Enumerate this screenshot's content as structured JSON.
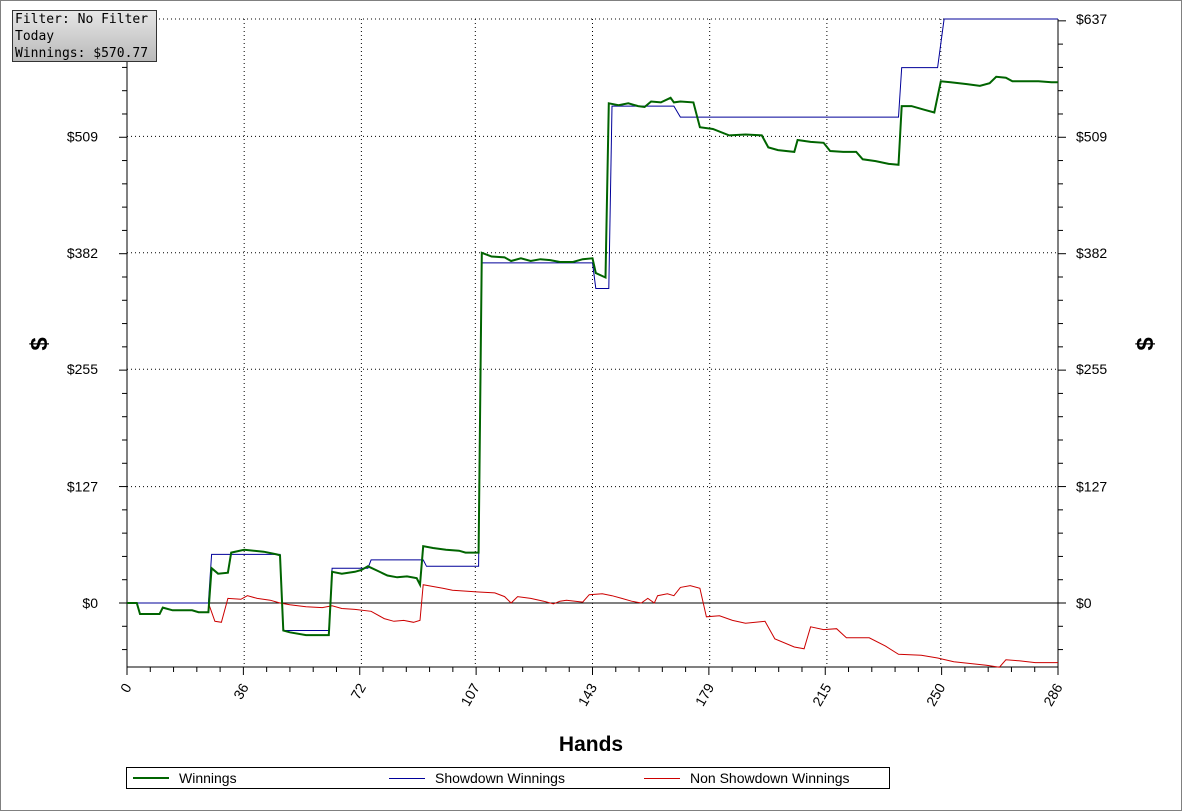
{
  "info_box": {
    "filter": "Filter: No Filter",
    "period": "Today",
    "winnings": "Winnings: $570.77"
  },
  "chart_data": {
    "type": "line",
    "title": "",
    "xlabel": "Hands",
    "ylabel_left": "$",
    "ylabel_right": "$",
    "xlim": [
      0,
      286
    ],
    "ylim": [
      -70,
      637
    ],
    "x_ticks": [
      "0",
      "36",
      "72",
      "107",
      "143",
      "179",
      "215",
      "250",
      "286"
    ],
    "x_tick_values": [
      0,
      36,
      72,
      107,
      143,
      179,
      215,
      250,
      286
    ],
    "y_ticks": [
      "$0",
      "$127",
      "$255",
      "$382",
      "$509",
      "$637"
    ],
    "y_tick_values": [
      0,
      127,
      255,
      382,
      509,
      637
    ],
    "grid": "dotted",
    "legend_position": "bottom",
    "series": [
      {
        "name": "Winnings",
        "color": "#006400",
        "points": [
          [
            0,
            0
          ],
          [
            3,
            0
          ],
          [
            4,
            -12
          ],
          [
            10,
            -12
          ],
          [
            11,
            -5
          ],
          [
            14,
            -8
          ],
          [
            20,
            -8
          ],
          [
            22,
            -10
          ],
          [
            25,
            -10
          ],
          [
            26,
            38
          ],
          [
            28,
            32
          ],
          [
            31,
            33
          ],
          [
            32,
            55
          ],
          [
            36,
            58
          ],
          [
            42,
            56
          ],
          [
            46,
            53
          ],
          [
            47,
            52
          ],
          [
            48,
            -30
          ],
          [
            50,
            -32
          ],
          [
            55,
            -35
          ],
          [
            60,
            -35
          ],
          [
            62,
            -35
          ],
          [
            63,
            34
          ],
          [
            66,
            32
          ],
          [
            70,
            34
          ],
          [
            72,
            36
          ],
          [
            74,
            40
          ],
          [
            77,
            35
          ],
          [
            80,
            30
          ],
          [
            83,
            28
          ],
          [
            86,
            29
          ],
          [
            89,
            27
          ],
          [
            90,
            20
          ],
          [
            91,
            62
          ],
          [
            94,
            60
          ],
          [
            98,
            58
          ],
          [
            102,
            57
          ],
          [
            104,
            55
          ],
          [
            108,
            55
          ],
          [
            109,
            382
          ],
          [
            112,
            378
          ],
          [
            116,
            377
          ],
          [
            118,
            373
          ],
          [
            121,
            376
          ],
          [
            124,
            373
          ],
          [
            127,
            375
          ],
          [
            130,
            374
          ],
          [
            133,
            372
          ],
          [
            137,
            372
          ],
          [
            140,
            375
          ],
          [
            143,
            376
          ],
          [
            144,
            360
          ],
          [
            147,
            355
          ],
          [
            148,
            545
          ],
          [
            151,
            543
          ],
          [
            154,
            545
          ],
          [
            157,
            542
          ],
          [
            159,
            541
          ],
          [
            161,
            547
          ],
          [
            164,
            546
          ],
          [
            167,
            551
          ],
          [
            168,
            546
          ],
          [
            170,
            547
          ],
          [
            174,
            546
          ],
          [
            176,
            519
          ],
          [
            180,
            517
          ],
          [
            185,
            510
          ],
          [
            190,
            511
          ],
          [
            195,
            510
          ],
          [
            197,
            497
          ],
          [
            200,
            494
          ],
          [
            205,
            492
          ],
          [
            206,
            505
          ],
          [
            210,
            503
          ],
          [
            214,
            502
          ],
          [
            216,
            493
          ],
          [
            220,
            492
          ],
          [
            224,
            492
          ],
          [
            226,
            484
          ],
          [
            230,
            482
          ],
          [
            234,
            479
          ],
          [
            237,
            478
          ],
          [
            238,
            542
          ],
          [
            241,
            542
          ],
          [
            245,
            538
          ],
          [
            248,
            535
          ],
          [
            250,
            569
          ],
          [
            253,
            568
          ],
          [
            258,
            566
          ],
          [
            262,
            564
          ],
          [
            265,
            567
          ],
          [
            267,
            574
          ],
          [
            270,
            573
          ],
          [
            272,
            569
          ],
          [
            276,
            569
          ],
          [
            280,
            569
          ],
          [
            284,
            568
          ],
          [
            286,
            568
          ]
        ]
      },
      {
        "name": "Showdown Winnings",
        "color": "#000099",
        "points": [
          [
            0,
            0
          ],
          [
            25,
            0
          ],
          [
            26,
            53
          ],
          [
            46,
            53
          ],
          [
            47,
            53
          ],
          [
            48,
            -30
          ],
          [
            62,
            -30
          ],
          [
            63,
            38
          ],
          [
            74,
            38
          ],
          [
            75,
            47
          ],
          [
            91,
            47
          ],
          [
            92,
            40
          ],
          [
            108,
            40
          ],
          [
            109,
            371
          ],
          [
            143,
            371
          ],
          [
            144,
            343
          ],
          [
            148,
            343
          ],
          [
            149,
            542
          ],
          [
            168,
            542
          ],
          [
            170,
            530
          ],
          [
            237,
            530
          ],
          [
            238,
            584
          ],
          [
            249,
            584
          ],
          [
            251,
            637
          ],
          [
            286,
            637
          ]
        ]
      },
      {
        "name": "Non Showdown Winnings",
        "color": "#cc0000",
        "points": [
          [
            0,
            0
          ],
          [
            25,
            0
          ],
          [
            27,
            -20
          ],
          [
            29,
            -21
          ],
          [
            31,
            5
          ],
          [
            35,
            4
          ],
          [
            37,
            8
          ],
          [
            40,
            5
          ],
          [
            44,
            3
          ],
          [
            47,
            0
          ],
          [
            50,
            -2
          ],
          [
            55,
            -4
          ],
          [
            60,
            -5
          ],
          [
            63,
            -3
          ],
          [
            66,
            -6
          ],
          [
            70,
            -7
          ],
          [
            75,
            -9
          ],
          [
            79,
            -17
          ],
          [
            82,
            -20
          ],
          [
            85,
            -19
          ],
          [
            88,
            -21
          ],
          [
            90,
            -19
          ],
          [
            91,
            20
          ],
          [
            94,
            18
          ],
          [
            97,
            16
          ],
          [
            100,
            14
          ],
          [
            104,
            13
          ],
          [
            108,
            12
          ],
          [
            113,
            11
          ],
          [
            116,
            7
          ],
          [
            118,
            0
          ],
          [
            120,
            7
          ],
          [
            124,
            5
          ],
          [
            128,
            2
          ],
          [
            131,
            -1
          ],
          [
            133,
            2
          ],
          [
            135,
            3
          ],
          [
            140,
            1
          ],
          [
            142,
            9
          ],
          [
            146,
            10
          ],
          [
            149,
            8
          ],
          [
            152,
            5
          ],
          [
            155,
            2
          ],
          [
            158,
            0
          ],
          [
            160,
            5
          ],
          [
            162,
            0
          ],
          [
            163,
            8
          ],
          [
            166,
            10
          ],
          [
            168,
            8
          ],
          [
            170,
            17
          ],
          [
            173,
            19
          ],
          [
            176,
            16
          ],
          [
            178,
            -15
          ],
          [
            182,
            -14
          ],
          [
            186,
            -19
          ],
          [
            190,
            -22
          ],
          [
            196,
            -20
          ],
          [
            199,
            -39
          ],
          [
            205,
            -48
          ],
          [
            208,
            -50
          ],
          [
            210,
            -26
          ],
          [
            214,
            -29
          ],
          [
            218,
            -28
          ],
          [
            221,
            -38
          ],
          [
            225,
            -38
          ],
          [
            228,
            -38
          ],
          [
            233,
            -47
          ],
          [
            237,
            -56
          ],
          [
            244,
            -57
          ],
          [
            249,
            -60
          ],
          [
            254,
            -64
          ],
          [
            259,
            -66
          ],
          [
            264,
            -68
          ],
          [
            268,
            -70
          ],
          [
            270,
            -62
          ],
          [
            274,
            -63
          ],
          [
            279,
            -65
          ],
          [
            286,
            -65
          ]
        ]
      }
    ]
  }
}
